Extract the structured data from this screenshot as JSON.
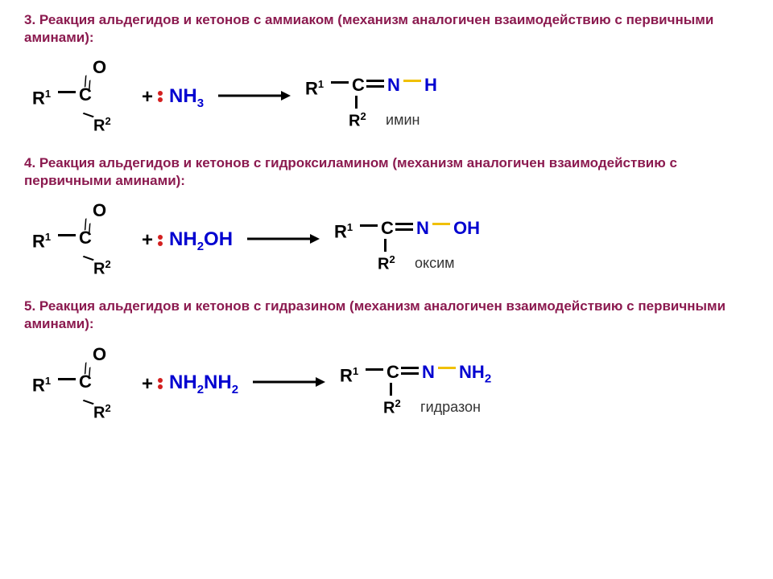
{
  "sections": [
    {
      "num": "3.",
      "title_part1": "Реакция альдегидов и кетонов с ",
      "title_highlight": "аммиаком",
      "title_part2": " (механизм аналогичен взаимодействию с первичными аминами):",
      "reagent_formula": "NH",
      "reagent_sub": "3",
      "reagent_tail": "",
      "product_x": "H",
      "product_x_sub": "",
      "product_label": "имин"
    },
    {
      "num": "4.",
      "title_part1": "Реакция альдегидов и кетонов с ",
      "title_highlight": "гидроксиламином",
      "title_part2": " (механизм аналогичен взаимодействию с первичными аминами):",
      "reagent_formula": "NH",
      "reagent_sub": "2",
      "reagent_tail": "OH",
      "product_x": "OH",
      "product_x_sub": "",
      "product_label": "оксим"
    },
    {
      "num": "5.",
      "title_part1": "Реакция альдегидов и кетонов с ",
      "title_highlight": "гидразином",
      "title_part2": " (механизм аналогичен взаимодействию с первичными аминами):",
      "reagent_formula": "NH",
      "reagent_sub": "2",
      "reagent_tail": "NH",
      "reagent_tail_sub": "2",
      "product_x": "NH",
      "product_x_sub": "2",
      "product_label": "гидразон"
    }
  ],
  "labels": {
    "O": "O",
    "C": "C",
    "R1": "R",
    "R1_sup": "1",
    "R2": "R",
    "R2_sup": "2",
    "N": "N",
    "plus": "+"
  },
  "colors": {
    "title": "#8b1a4f",
    "blue": "#0000d0",
    "red": "#d32020",
    "yellow": "#f0c000",
    "black": "#000000"
  }
}
